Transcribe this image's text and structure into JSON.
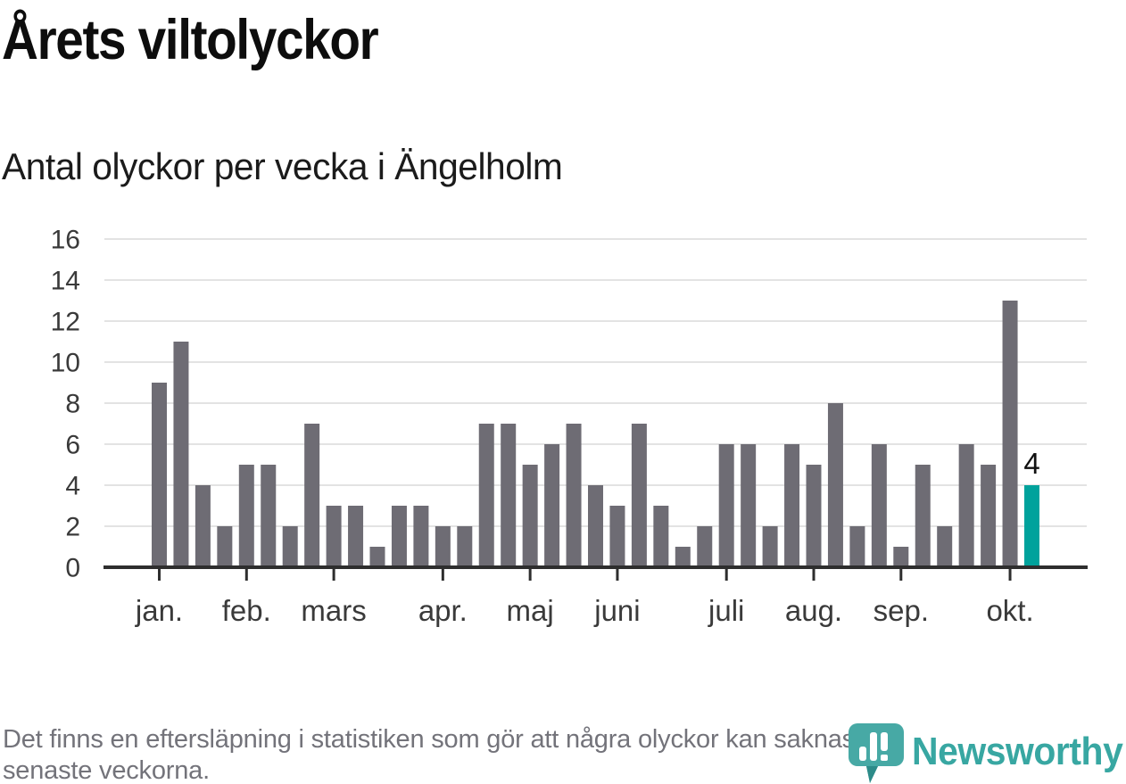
{
  "header": {
    "title": "Årets viltolyckor",
    "subtitle": "Antal olyckor per vecka i Ängelholm"
  },
  "chart_data": {
    "type": "bar",
    "title": "Årets viltolyckor",
    "subtitle": "Antal olyckor per vecka i Ängelholm",
    "ylabel": "",
    "xlabel": "",
    "x_unit": "vecka",
    "x": [
      1,
      2,
      3,
      4,
      5,
      6,
      7,
      8,
      9,
      10,
      11,
      12,
      13,
      14,
      15,
      16,
      17,
      18,
      19,
      20,
      21,
      22,
      23,
      24,
      25,
      26,
      27,
      28,
      29,
      30,
      31,
      32,
      33,
      34,
      35,
      36,
      37,
      38,
      39,
      40,
      41
    ],
    "values": [
      9,
      11,
      4,
      2,
      5,
      5,
      2,
      7,
      3,
      3,
      1,
      3,
      3,
      2,
      2,
      7,
      7,
      5,
      6,
      7,
      4,
      3,
      7,
      3,
      1,
      2,
      6,
      6,
      2,
      6,
      5,
      8,
      2,
      6,
      1,
      5,
      2,
      6,
      5,
      13,
      4
    ],
    "highlight_last_index": 40,
    "last_value_label": "4",
    "ylim": [
      0,
      16
    ],
    "yticks": [
      0,
      2,
      4,
      6,
      8,
      10,
      12,
      14,
      16
    ],
    "grid": "horizontal",
    "legend": "none",
    "months": [
      {
        "label": "jan.",
        "week": 1
      },
      {
        "label": "feb.",
        "week": 5
      },
      {
        "label": "mars",
        "week": 9
      },
      {
        "label": "apr.",
        "week": 14
      },
      {
        "label": "maj",
        "week": 18
      },
      {
        "label": "juni",
        "week": 22
      },
      {
        "label": "juli",
        "week": 27
      },
      {
        "label": "aug.",
        "week": 31
      },
      {
        "label": "sep.",
        "week": 35
      },
      {
        "label": "okt.",
        "week": 40
      }
    ],
    "colors": {
      "bar": "#6E6C74",
      "highlight": "#00A29C",
      "grid": "#E3E3E3",
      "axis": "#2E2E2E",
      "tick_label": "#3A3A3A",
      "annotation": "#111111"
    }
  },
  "footer": {
    "note_line1": "Det finns en eftersläpning i statistiken som gör att några olyckor kan saknas de",
    "note_line2": "senaste veckorna.",
    "logo": {
      "text": "Newsworthy",
      "icon": "newsworthy-speech-bubble-bar-chart-icon",
      "color": "#38A7A2",
      "icon_color": "#47A9A5",
      "icon_shadow_color": "#2D8B89"
    }
  }
}
